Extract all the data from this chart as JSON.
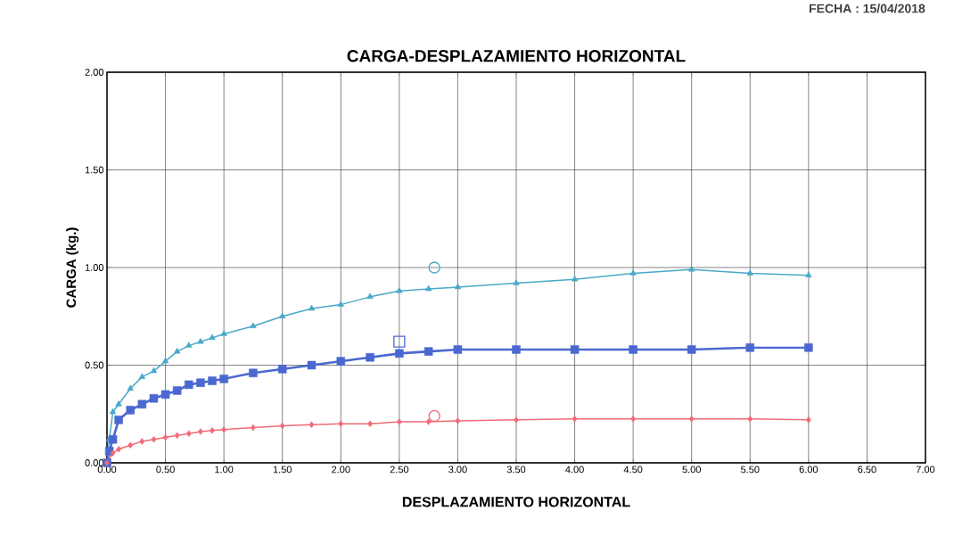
{
  "chart_data": {
    "type": "line",
    "title": "CARGA-DESPLAZAMIENTO HORIZONTAL",
    "xlabel": "DESPLAZAMIENTO HORIZONTAL",
    "ylabel": "CARGA (kg.)",
    "annotations": [
      "FECHA  :  15/04/2018"
    ],
    "xlim": [
      0,
      7
    ],
    "ylim": [
      0,
      2
    ],
    "xticks": [
      {
        "value": 0,
        "label": "0.00"
      },
      {
        "value": 0.5,
        "label": "0.50"
      },
      {
        "value": 1,
        "label": "1.00"
      },
      {
        "value": 1.5,
        "label": "1.50"
      },
      {
        "value": 2,
        "label": "2.00"
      },
      {
        "value": 2.5,
        "label": "2.50"
      },
      {
        "value": 3,
        "label": "3.00"
      },
      {
        "value": 3.5,
        "label": "3.50"
      },
      {
        "value": 4,
        "label": "4.00"
      },
      {
        "value": 4.5,
        "label": "4.50"
      },
      {
        "value": 5,
        "label": "5.00"
      },
      {
        "value": 5.5,
        "label": "5.50"
      },
      {
        "value": 6,
        "label": "6.00"
      },
      {
        "value": 6.5,
        "label": "6.50"
      },
      {
        "value": 7,
        "label": "7.00"
      }
    ],
    "yticks": [
      {
        "value": 0,
        "label": "0.00"
      },
      {
        "value": 0.5,
        "label": "0.50"
      },
      {
        "value": 1,
        "label": "1.00"
      },
      {
        "value": 1.5,
        "label": "1.50"
      },
      {
        "value": 2,
        "label": "2.00"
      }
    ],
    "grid": true,
    "line_style": "solid",
    "series": [
      {
        "color": "#4aa8c8",
        "marker": "triangle",
        "x": [
          0,
          0.02,
          0.05,
          0.1,
          0.2,
          0.3,
          0.4,
          0.5,
          0.6,
          0.7,
          0.8,
          0.9,
          1.0,
          1.25,
          1.5,
          1.75,
          2.0,
          2.25,
          2.5,
          2.75,
          3.0,
          3.5,
          4.0,
          4.5,
          5.0,
          5.5,
          6.0
        ],
        "values": [
          0,
          0.12,
          0.26,
          0.3,
          0.38,
          0.44,
          0.47,
          0.52,
          0.57,
          0.6,
          0.62,
          0.64,
          0.66,
          0.7,
          0.75,
          0.79,
          0.81,
          0.85,
          0.88,
          0.89,
          0.9,
          0.92,
          0.94,
          0.97,
          0.99,
          0.97,
          0.96
        ]
      },
      {
        "color": "#4a68d0",
        "marker": "square",
        "x": [
          0,
          0.02,
          0.05,
          0.1,
          0.2,
          0.3,
          0.4,
          0.5,
          0.6,
          0.7,
          0.8,
          0.9,
          1.0,
          1.25,
          1.5,
          1.75,
          2.0,
          2.25,
          2.5,
          2.75,
          3.0,
          3.5,
          4.0,
          4.5,
          5.0,
          5.5,
          6.0
        ],
        "values": [
          0,
          0.06,
          0.12,
          0.22,
          0.27,
          0.3,
          0.33,
          0.35,
          0.37,
          0.4,
          0.41,
          0.42,
          0.43,
          0.46,
          0.48,
          0.5,
          0.52,
          0.54,
          0.56,
          0.57,
          0.58,
          0.58,
          0.58,
          0.58,
          0.58,
          0.59,
          0.59
        ]
      },
      {
        "color": "#f06a78",
        "marker": "diamond",
        "x": [
          0,
          0.05,
          0.1,
          0.2,
          0.3,
          0.4,
          0.5,
          0.6,
          0.7,
          0.8,
          0.9,
          1.0,
          1.25,
          1.5,
          1.75,
          2.0,
          2.25,
          2.5,
          2.75,
          3.0,
          3.5,
          4.0,
          4.5,
          5.0,
          5.5,
          6.0
        ],
        "values": [
          0,
          0.05,
          0.07,
          0.09,
          0.11,
          0.12,
          0.13,
          0.14,
          0.15,
          0.16,
          0.165,
          0.17,
          0.18,
          0.19,
          0.195,
          0.2,
          0.2,
          0.21,
          0.21,
          0.215,
          0.22,
          0.225,
          0.225,
          0.225,
          0.225,
          0.22
        ]
      },
      {
        "type": "scatter",
        "color": "#4aa8c8",
        "marker": "circle",
        "x": [
          2.8
        ],
        "values": [
          1.0
        ]
      },
      {
        "type": "scatter",
        "color": "#4a68d0",
        "marker": "square",
        "x": [
          2.5
        ],
        "values": [
          0.62
        ]
      },
      {
        "type": "scatter",
        "color": "#f06a78",
        "marker": "circle",
        "x": [
          2.8
        ],
        "values": [
          0.24
        ]
      }
    ]
  }
}
